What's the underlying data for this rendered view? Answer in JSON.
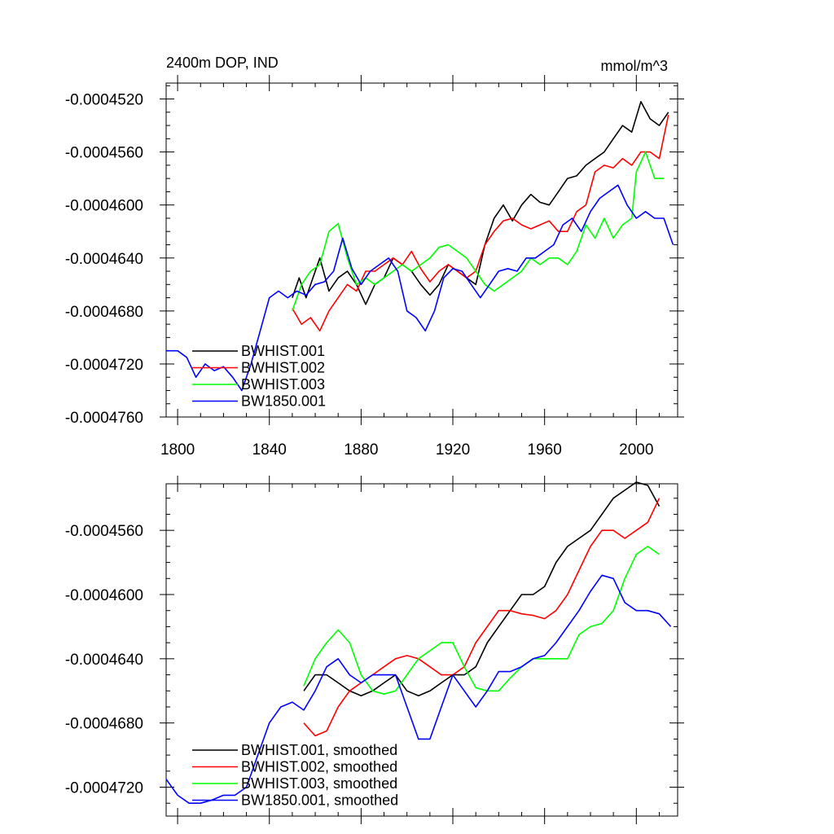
{
  "colors": {
    "BWHIST.001": "#000000",
    "BWHIST.002": "#ff0000",
    "BWHIST.003": "#00ff00",
    "BW1850.001": "#0000ff"
  },
  "chart_data": [
    {
      "type": "line",
      "title": "2400m DOP, IND",
      "units": "mmol/m^3",
      "xlim": [
        1795,
        2018
      ],
      "ylim": [
        -0.000476,
        -0.0004508
      ],
      "x_ticks": [
        1800,
        1840,
        1880,
        1920,
        1960,
        2000
      ],
      "x_tick_labels": [
        "1800",
        "1840",
        "1880",
        "1920",
        "1960",
        "2000"
      ],
      "y_ticks": [
        -0.000452,
        -0.000456,
        -0.00046,
        -0.000464,
        -0.000468,
        -0.000472,
        -0.000476
      ],
      "y_tick_labels": [
        "-0.0004520",
        "-0.0004560",
        "-0.0004600",
        "-0.0004640",
        "-0.0004680",
        "-0.0004720",
        "-0.0004760"
      ],
      "legend": [
        "BWHIST.001",
        "BWHIST.002",
        "BWHIST.003",
        "BW1850.001"
      ],
      "legend_position": "bottom-left",
      "series": [
        {
          "name": "BWHIST.001",
          "x": [
            1850,
            1853,
            1856,
            1859,
            1862,
            1866,
            1870,
            1874,
            1878,
            1882,
            1886,
            1890,
            1894,
            1898,
            1902,
            1906,
            1910,
            1914,
            1918,
            1922,
            1926,
            1930,
            1934,
            1938,
            1942,
            1946,
            1950,
            1954,
            1958,
            1962,
            1966,
            1970,
            1974,
            1978,
            1982,
            1986,
            1990,
            1994,
            1998,
            2002,
            2006,
            2010,
            2014
          ],
          "y": [
            -0.000467,
            -0.0004655,
            -0.000467,
            -0.0004655,
            -0.000464,
            -0.0004665,
            -0.0004655,
            -0.000465,
            -0.000466,
            -0.0004675,
            -0.000466,
            -0.0004655,
            -0.000464,
            -0.0004645,
            -0.000465,
            -0.000466,
            -0.0004668,
            -0.000466,
            -0.0004645,
            -0.000465,
            -0.0004655,
            -0.000466,
            -0.000463,
            -0.000461,
            -0.00046,
            -0.0004612,
            -0.00046,
            -0.0004592,
            -0.0004598,
            -0.00046,
            -0.000459,
            -0.000458,
            -0.0004578,
            -0.000457,
            -0.0004565,
            -0.000456,
            -0.000455,
            -0.000454,
            -0.0004545,
            -0.0004522,
            -0.0004535,
            -0.000454,
            -0.000453
          ]
        },
        {
          "name": "BWHIST.002",
          "x": [
            1850,
            1854,
            1858,
            1862,
            1866,
            1870,
            1874,
            1878,
            1882,
            1886,
            1890,
            1894,
            1898,
            1902,
            1906,
            1910,
            1914,
            1918,
            1922,
            1926,
            1930,
            1934,
            1938,
            1942,
            1946,
            1950,
            1954,
            1958,
            1962,
            1966,
            1970,
            1974,
            1978,
            1982,
            1986,
            1990,
            1994,
            1998,
            2002,
            2006,
            2010,
            2014
          ],
          "y": [
            -0.0004678,
            -0.000469,
            -0.0004685,
            -0.0004695,
            -0.000468,
            -0.000467,
            -0.000466,
            -0.0004665,
            -0.000465,
            -0.000465,
            -0.0004645,
            -0.000464,
            -0.0004645,
            -0.0004635,
            -0.0004648,
            -0.0004658,
            -0.000465,
            -0.0004645,
            -0.000465,
            -0.0004655,
            -0.000465,
            -0.000463,
            -0.000462,
            -0.0004612,
            -0.000461,
            -0.0004615,
            -0.0004618,
            -0.0004615,
            -0.0004612,
            -0.000462,
            -0.000462,
            -0.0004605,
            -0.00046,
            -0.0004575,
            -0.000457,
            -0.0004572,
            -0.0004565,
            -0.000457,
            -0.000456,
            -0.000456,
            -0.0004565,
            -0.0004532
          ]
        },
        {
          "name": "BWHIST.003",
          "x": [
            1850,
            1854,
            1858,
            1862,
            1866,
            1870,
            1874,
            1878,
            1882,
            1886,
            1890,
            1894,
            1898,
            1902,
            1906,
            1910,
            1914,
            1918,
            1922,
            1926,
            1930,
            1934,
            1938,
            1942,
            1946,
            1950,
            1954,
            1958,
            1962,
            1966,
            1970,
            1974,
            1978,
            1982,
            1986,
            1990,
            1994,
            1998,
            2000,
            2004,
            2008,
            2012
          ],
          "y": [
            -0.000468,
            -0.000466,
            -0.000465,
            -0.0004645,
            -0.000462,
            -0.0004614,
            -0.000464,
            -0.000466,
            -0.0004655,
            -0.000466,
            -0.0004655,
            -0.000465,
            -0.0004645,
            -0.000465,
            -0.0004645,
            -0.000464,
            -0.0004632,
            -0.000463,
            -0.0004635,
            -0.000464,
            -0.000465,
            -0.000466,
            -0.0004665,
            -0.000466,
            -0.0004655,
            -0.000465,
            -0.000464,
            -0.0004645,
            -0.000464,
            -0.000464,
            -0.0004645,
            -0.0004635,
            -0.0004615,
            -0.0004625,
            -0.000461,
            -0.0004625,
            -0.0004615,
            -0.000461,
            -0.0004575,
            -0.000456,
            -0.000458,
            -0.000458
          ]
        },
        {
          "name": "BW1850.001",
          "x": [
            1795,
            1800,
            1804,
            1808,
            1812,
            1816,
            1820,
            1824,
            1828,
            1832,
            1836,
            1840,
            1844,
            1848,
            1852,
            1856,
            1860,
            1864,
            1868,
            1872,
            1876,
            1880,
            1884,
            1888,
            1892,
            1896,
            1900,
            1904,
            1908,
            1912,
            1916,
            1920,
            1924,
            1928,
            1932,
            1936,
            1940,
            1944,
            1948,
            1952,
            1956,
            1960,
            1964,
            1968,
            1972,
            1976,
            1980,
            1984,
            1988,
            1992,
            1996,
            2000,
            2004,
            2008,
            2012,
            2016
          ],
          "y": [
            -0.000471,
            -0.000471,
            -0.0004715,
            -0.000473,
            -0.000472,
            -0.0004725,
            -0.0004722,
            -0.000473,
            -0.000474,
            -0.000472,
            -0.0004695,
            -0.000467,
            -0.0004665,
            -0.000467,
            -0.0004665,
            -0.0004668,
            -0.000466,
            -0.0004658,
            -0.000465,
            -0.0004625,
            -0.0004648,
            -0.000466,
            -0.000465,
            -0.0004645,
            -0.000464,
            -0.000465,
            -0.000468,
            -0.0004685,
            -0.0004695,
            -0.000468,
            -0.0004655,
            -0.0004648,
            -0.000465,
            -0.000466,
            -0.000467,
            -0.000466,
            -0.000465,
            -0.0004648,
            -0.000465,
            -0.000464,
            -0.000464,
            -0.0004635,
            -0.000463,
            -0.0004615,
            -0.000461,
            -0.000462,
            -0.0004605,
            -0.0004595,
            -0.000459,
            -0.0004585,
            -0.00046,
            -0.000461,
            -0.0004605,
            -0.000461,
            -0.000461,
            -0.000463
          ]
        }
      ]
    },
    {
      "type": "line",
      "xlim": [
        1795,
        2018
      ],
      "ylim": [
        -0.0004738,
        -0.0004531
      ],
      "y_ticks": [
        -0.000456,
        -0.00046,
        -0.000464,
        -0.000468,
        -0.000472
      ],
      "y_tick_labels": [
        "-0.0004560",
        "-0.0004600",
        "-0.0004640",
        "-0.0004680",
        "-0.0004720"
      ],
      "legend": [
        "BWHIST.001, smoothed",
        "BWHIST.002, smoothed",
        "BWHIST.003, smoothed",
        "BW1850.001, smoothed"
      ],
      "legend_position": "bottom-left",
      "series": [
        {
          "name": "BWHIST.001, smoothed",
          "x": [
            1855,
            1860,
            1865,
            1870,
            1875,
            1880,
            1885,
            1890,
            1895,
            1900,
            1905,
            1910,
            1915,
            1920,
            1925,
            1930,
            1935,
            1940,
            1945,
            1950,
            1955,
            1960,
            1965,
            1970,
            1975,
            1980,
            1985,
            1990,
            1995,
            2000,
            2005,
            2010
          ],
          "y": [
            -0.000466,
            -0.000465,
            -0.000465,
            -0.0004655,
            -0.000466,
            -0.0004663,
            -0.000466,
            -0.0004655,
            -0.000465,
            -0.000466,
            -0.0004663,
            -0.000466,
            -0.0004655,
            -0.000465,
            -0.000465,
            -0.0004645,
            -0.000463,
            -0.000462,
            -0.000461,
            -0.00046,
            -0.00046,
            -0.0004595,
            -0.000458,
            -0.000457,
            -0.0004565,
            -0.000456,
            -0.000455,
            -0.000454,
            -0.0004535,
            -0.000453,
            -0.0004532,
            -0.0004545
          ]
        },
        {
          "name": "BWHIST.002, smoothed",
          "x": [
            1855,
            1860,
            1865,
            1870,
            1875,
            1880,
            1885,
            1890,
            1895,
            1900,
            1905,
            1910,
            1915,
            1920,
            1925,
            1930,
            1935,
            1940,
            1945,
            1950,
            1955,
            1960,
            1965,
            1970,
            1975,
            1980,
            1985,
            1990,
            1995,
            2000,
            2005,
            2010
          ],
          "y": [
            -0.000468,
            -0.0004688,
            -0.0004685,
            -0.000467,
            -0.000466,
            -0.0004655,
            -0.000465,
            -0.0004645,
            -0.000464,
            -0.0004638,
            -0.000464,
            -0.0004645,
            -0.000465,
            -0.000465,
            -0.0004645,
            -0.000463,
            -0.000462,
            -0.000461,
            -0.000461,
            -0.0004612,
            -0.0004613,
            -0.0004615,
            -0.000461,
            -0.00046,
            -0.0004585,
            -0.000457,
            -0.000456,
            -0.000456,
            -0.0004565,
            -0.000456,
            -0.0004555,
            -0.000454
          ]
        },
        {
          "name": "BWHIST.003, smoothed",
          "x": [
            1855,
            1860,
            1865,
            1870,
            1875,
            1880,
            1885,
            1890,
            1895,
            1900,
            1905,
            1910,
            1915,
            1920,
            1925,
            1930,
            1935,
            1940,
            1945,
            1950,
            1955,
            1960,
            1965,
            1970,
            1975,
            1980,
            1985,
            1990,
            1995,
            2000,
            2005,
            2010
          ],
          "y": [
            -0.0004657,
            -0.000464,
            -0.000463,
            -0.0004622,
            -0.000463,
            -0.000465,
            -0.000466,
            -0.0004662,
            -0.000466,
            -0.000465,
            -0.000464,
            -0.0004635,
            -0.000463,
            -0.000463,
            -0.0004645,
            -0.0004658,
            -0.000466,
            -0.000466,
            -0.0004652,
            -0.0004645,
            -0.000464,
            -0.000464,
            -0.000464,
            -0.000464,
            -0.0004625,
            -0.000462,
            -0.0004618,
            -0.000461,
            -0.000459,
            -0.0004575,
            -0.000457,
            -0.0004575
          ]
        },
        {
          "name": "BW1850.001, smoothed",
          "x": [
            1795,
            1800,
            1805,
            1810,
            1815,
            1820,
            1825,
            1830,
            1835,
            1840,
            1845,
            1850,
            1855,
            1860,
            1865,
            1870,
            1875,
            1880,
            1885,
            1890,
            1895,
            1900,
            1905,
            1910,
            1915,
            1920,
            1925,
            1930,
            1935,
            1940,
            1945,
            1950,
            1955,
            1960,
            1965,
            1970,
            1975,
            1980,
            1985,
            1990,
            1995,
            2000,
            2005,
            2010,
            2015
          ],
          "y": [
            -0.0004715,
            -0.0004725,
            -0.000473,
            -0.000473,
            -0.0004728,
            -0.0004725,
            -0.0004725,
            -0.000472,
            -0.00047,
            -0.000468,
            -0.000467,
            -0.0004667,
            -0.0004672,
            -0.000466,
            -0.0004645,
            -0.000464,
            -0.000465,
            -0.0004655,
            -0.000465,
            -0.000465,
            -0.000465,
            -0.000467,
            -0.000469,
            -0.000469,
            -0.000467,
            -0.000465,
            -0.000466,
            -0.000467,
            -0.000466,
            -0.0004648,
            -0.0004648,
            -0.0004645,
            -0.000464,
            -0.0004638,
            -0.000463,
            -0.000462,
            -0.000461,
            -0.0004598,
            -0.0004588,
            -0.000459,
            -0.0004605,
            -0.000461,
            -0.000461,
            -0.0004612,
            -0.000462
          ]
        }
      ]
    }
  ]
}
